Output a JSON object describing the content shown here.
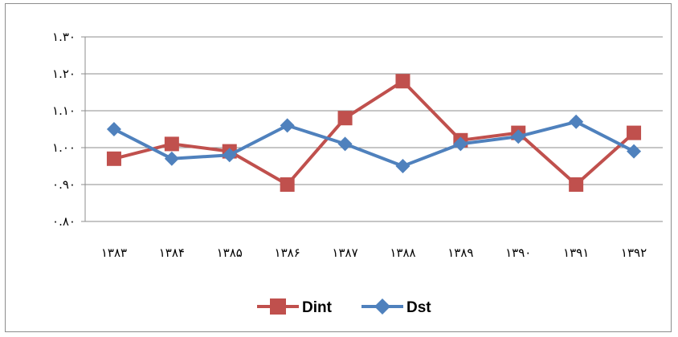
{
  "chart_data": {
    "type": "line",
    "categories": [
      "۱۳۸۳",
      "۱۳۸۴",
      "۱۳۸۵",
      "۱۳۸۶",
      "۱۳۸۷",
      "۱۳۸۸",
      "۱۳۸۹",
      "۱۳۹۰",
      "۱۳۹۱",
      "۱۳۹۲"
    ],
    "ylim": [
      0.8,
      1.3
    ],
    "yticks": [
      0.8,
      0.9,
      1.0,
      1.1,
      1.2,
      1.3
    ],
    "ytick_labels": [
      "۰.۸۰",
      "۰.۹۰",
      "۱.۰۰",
      "۱.۱۰",
      "۱.۲۰",
      "۱.۳۰"
    ],
    "grid": true,
    "legend_position": "bottom",
    "series": [
      {
        "name": "Dint",
        "color": "#C0504D",
        "marker": "square",
        "values": [
          0.97,
          1.01,
          0.99,
          0.9,
          1.08,
          1.18,
          1.02,
          1.04,
          0.9,
          1.04
        ]
      },
      {
        "name": "Dst",
        "color": "#4F81BD",
        "marker": "diamond",
        "values": [
          1.05,
          0.97,
          0.98,
          1.06,
          1.01,
          0.95,
          1.01,
          1.03,
          1.07,
          0.99
        ]
      }
    ]
  }
}
